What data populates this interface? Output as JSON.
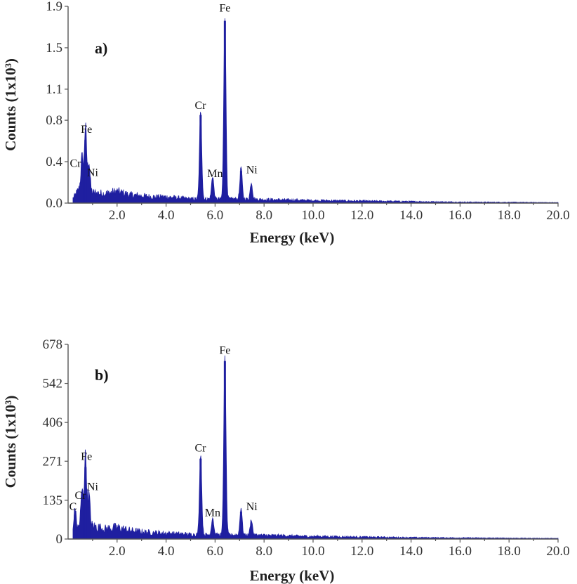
{
  "chart_data": [
    {
      "type": "area",
      "panel_label": "a)",
      "xlabel": "Energy (keV)",
      "ylabel": "Counts (1x10³)",
      "xlim": [
        0,
        20
      ],
      "ylim": [
        0,
        1.9
      ],
      "x_ticks": [
        2,
        4,
        6,
        8,
        10,
        12,
        14,
        16,
        18,
        20
      ],
      "x_tick_labels": [
        "2.0",
        "4.0",
        "6.0",
        "8.0",
        "10.0",
        "12.0",
        "14.0",
        "16.0",
        "18.0",
        "20.0"
      ],
      "y_ticks": [
        0,
        0.4,
        0.8,
        1.1,
        1.5,
        1.9
      ],
      "y_tick_labels": [
        "0.0",
        "0.4",
        "0.8",
        "1.1",
        "1.5",
        "1.9"
      ],
      "color": "#1f1fa0",
      "peaks": [
        {
          "label": "Cr",
          "x": 0.57,
          "y": 0.3
        },
        {
          "label": "Fe",
          "x": 0.71,
          "y": 0.61
        },
        {
          "label": "Ni",
          "x": 0.85,
          "y": 0.28
        },
        {
          "label": "Cr",
          "x": 5.41,
          "y": 0.85
        },
        {
          "label": "Mn",
          "x": 5.9,
          "y": 0.22
        },
        {
          "label": "Fe",
          "x": 6.4,
          "y": 1.76
        },
        {
          "label": "Fe",
          "x": 7.06,
          "y": 0.31
        },
        {
          "label": "Ni",
          "x": 7.48,
          "y": 0.16
        }
      ],
      "annotations": [
        {
          "text": "Cr",
          "x": 0.3,
          "y": 0.35
        },
        {
          "text": "Fe",
          "x": 0.75,
          "y": 0.68
        },
        {
          "text": "Ni",
          "x": 1.0,
          "y": 0.26
        },
        {
          "text": "Cr",
          "x": 5.4,
          "y": 0.91
        },
        {
          "text": "Mn",
          "x": 6.0,
          "y": 0.25
        },
        {
          "text": "Fe",
          "x": 6.4,
          "y": 1.85
        },
        {
          "text": "Ni",
          "x": 7.5,
          "y": 0.29
        }
      ],
      "background": [
        [
          0.25,
          0.06
        ],
        [
          0.5,
          0.15
        ],
        [
          1.0,
          0.1
        ],
        [
          1.5,
          0.09
        ],
        [
          2.0,
          0.11
        ],
        [
          2.5,
          0.08
        ],
        [
          3.0,
          0.07
        ],
        [
          3.5,
          0.06
        ],
        [
          4.0,
          0.06
        ],
        [
          4.5,
          0.05
        ],
        [
          5.0,
          0.04
        ],
        [
          5.5,
          0.04
        ],
        [
          6.0,
          0.04
        ],
        [
          7.0,
          0.04
        ],
        [
          8.0,
          0.035
        ],
        [
          10.0,
          0.025
        ],
        [
          12.0,
          0.02
        ],
        [
          14.0,
          0.015
        ],
        [
          16.0,
          0.01
        ],
        [
          18.0,
          0.008
        ],
        [
          20.0,
          0.005
        ]
      ]
    },
    {
      "type": "area",
      "panel_label": "b)",
      "xlabel": "Energy (keV)",
      "ylabel": "Counts (1x10³)",
      "xlim": [
        0,
        20
      ],
      "ylim": [
        0,
        678
      ],
      "x_ticks": [
        2,
        4,
        6,
        8,
        10,
        12,
        14,
        16,
        18,
        20
      ],
      "x_tick_labels": [
        "2.0",
        "4.0",
        "6.0",
        "8.0",
        "10.0",
        "12.0",
        "14.0",
        "16.0",
        "18.0",
        "20.0"
      ],
      "y_ticks": [
        0,
        135,
        271,
        406,
        542,
        678
      ],
      "y_tick_labels": [
        "0",
        "135",
        "271",
        "406",
        "542",
        "678"
      ],
      "color": "#1f1fa0",
      "peaks": [
        {
          "label": "C",
          "x": 0.28,
          "y": 85
        },
        {
          "label": "Cr",
          "x": 0.57,
          "y": 120
        },
        {
          "label": "Fe",
          "x": 0.71,
          "y": 250
        },
        {
          "label": "Ni",
          "x": 0.85,
          "y": 110
        },
        {
          "label": "Cr",
          "x": 5.41,
          "y": 280
        },
        {
          "label": "Mn",
          "x": 5.9,
          "y": 60
        },
        {
          "label": "Fe",
          "x": 6.4,
          "y": 620
        },
        {
          "label": "Fe",
          "x": 7.06,
          "y": 95
        },
        {
          "label": "Ni",
          "x": 7.48,
          "y": 55
        }
      ],
      "annotations": [
        {
          "text": "C",
          "x": 0.2,
          "y": 100
        },
        {
          "text": "Cr",
          "x": 0.5,
          "y": 140
        },
        {
          "text": "Fe",
          "x": 0.75,
          "y": 275
        },
        {
          "text": "Ni",
          "x": 1.0,
          "y": 170
        },
        {
          "text": "Cr",
          "x": 5.4,
          "y": 305
        },
        {
          "text": "Mn",
          "x": 5.9,
          "y": 80
        },
        {
          "text": "Fe",
          "x": 6.4,
          "y": 645
        },
        {
          "text": "Ni",
          "x": 7.5,
          "y": 100
        }
      ],
      "background": [
        [
          0.25,
          20
        ],
        [
          0.5,
          50
        ],
        [
          1.0,
          45
        ],
        [
          1.5,
          35
        ],
        [
          2.0,
          40
        ],
        [
          2.5,
          30
        ],
        [
          3.0,
          25
        ],
        [
          3.5,
          22
        ],
        [
          4.0,
          20
        ],
        [
          4.5,
          18
        ],
        [
          5.0,
          16
        ],
        [
          5.5,
          15
        ],
        [
          6.0,
          15
        ],
        [
          7.0,
          14
        ],
        [
          8.0,
          13
        ],
        [
          10.0,
          9
        ],
        [
          12.0,
          7
        ],
        [
          14.0,
          5
        ],
        [
          16.0,
          4
        ],
        [
          18.0,
          3
        ],
        [
          20.0,
          2
        ]
      ]
    }
  ]
}
